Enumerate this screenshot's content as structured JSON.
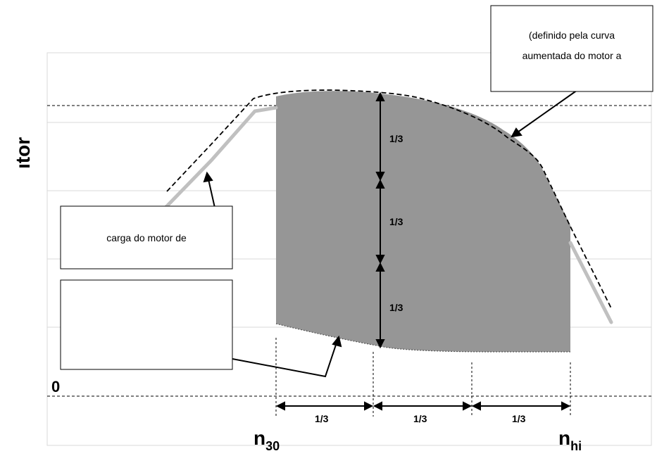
{
  "diagram": {
    "y_axis_label": "ıtor",
    "zero_label": "0",
    "segment_labels": {
      "vertical": [
        "1/3",
        "1/3",
        "1/3"
      ],
      "horizontal": [
        "1/3",
        "1/3",
        "1/3"
      ]
    },
    "x_labels": {
      "n30_main": "n",
      "n30_sub": "30",
      "nhi_main": "n",
      "nhi_sub": "hi"
    },
    "callouts": {
      "top_right_line1": "(definido pela curva",
      "top_right_line2": "aumentada do motor a",
      "left_upper": "carga do motor de",
      "left_lower": ""
    },
    "colors": {
      "shaded_region": "#969696",
      "gray_curve": "#c0c0c0",
      "grid": "#d9d9d9",
      "outline": "#000000"
    }
  }
}
